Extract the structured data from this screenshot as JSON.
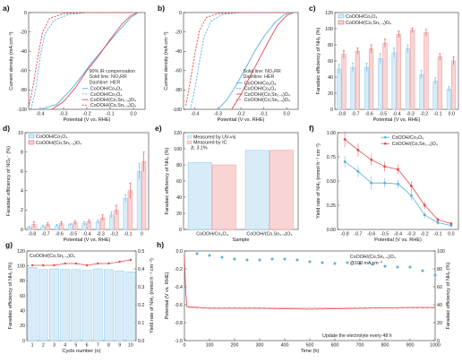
{
  "colors": {
    "blue": "#5aaee0",
    "red": "#e0494c",
    "lightblue": "#d8ecf8",
    "lightred": "#f9d4d4",
    "edgeblue": "#8cc8ec",
    "edgered": "#f09090"
  },
  "chart_data": [
    {
      "panel": "a",
      "type": "line",
      "xlabel": "Potential (V vs. RHE)",
      "ylabel": "Current density (mA cm⁻²)",
      "xlim": [
        -0.45,
        0.05
      ],
      "ylim": [
        -100,
        0
      ],
      "xticks": [
        "-0.4",
        "-0.3",
        "-0.2",
        "-0.1",
        "0.0"
      ],
      "yticks": [
        "-100",
        "-80",
        "-60",
        "-40",
        "-20",
        "0"
      ],
      "annotations": [
        "90% iR compensation",
        "Solid line: NO₃RR",
        "Dashline: HER"
      ],
      "series": [
        {
          "name": "CoOOH/Co₃O₄",
          "color": "#5aaee0",
          "dash": false,
          "points": [
            [
              -0.4,
              -100
            ],
            [
              -0.33,
              -95
            ],
            [
              -0.27,
              -80
            ],
            [
              -0.22,
              -65
            ],
            [
              -0.18,
              -52
            ],
            [
              -0.12,
              -35
            ],
            [
              -0.06,
              -18
            ],
            [
              -0.01,
              -5
            ],
            [
              0.02,
              0
            ]
          ]
        },
        {
          "name": "CoOOH/Co₃O₄",
          "color": "#5aaee0",
          "dash": true,
          "points": [
            [
              -0.44,
              -100
            ],
            [
              -0.42,
              -80
            ],
            [
              -0.4,
              -45
            ],
            [
              -0.38,
              -22
            ],
            [
              -0.34,
              -8
            ],
            [
              -0.28,
              -2
            ],
            [
              -0.2,
              0
            ],
            [
              0.0,
              0
            ]
          ]
        },
        {
          "name": "CoOOH/(Co,Sn₁₋ₓ)O₄",
          "color": "#e0494c",
          "dash": false,
          "points": [
            [
              -0.35,
              -100
            ],
            [
              -0.3,
              -92
            ],
            [
              -0.25,
              -78
            ],
            [
              -0.2,
              -60
            ],
            [
              -0.15,
              -45
            ],
            [
              -0.1,
              -28
            ],
            [
              -0.05,
              -12
            ],
            [
              -0.01,
              -3
            ],
            [
              0.02,
              0
            ]
          ]
        },
        {
          "name": "CoOOH/(Co,Sn₁₋ₓ)O₄",
          "color": "#e0494c",
          "dash": true,
          "points": [
            [
              -0.45,
              -98
            ],
            [
              -0.43,
              -75
            ],
            [
              -0.41,
              -45
            ],
            [
              -0.39,
              -20
            ],
            [
              -0.36,
              -6
            ],
            [
              -0.3,
              -1
            ],
            [
              -0.2,
              0
            ],
            [
              0.0,
              0
            ]
          ]
        }
      ],
      "legend": [
        "CoOOH/Co₃O₄",
        "CoOOH/Co₃O₄",
        "CoOOH/(Co,Sn₁₋ₓ)O₄",
        "CoOOH/(Co,Sn₁₋ₓ)O₄"
      ]
    },
    {
      "panel": "b",
      "type": "line",
      "xlabel": "Potential (V vs. RHE)",
      "ylabel": "Current density (mA cm⁻²)",
      "xlim": [
        -0.45,
        0.05
      ],
      "ylim": [
        -100,
        0
      ],
      "xticks": [
        "-0.4",
        "-0.3",
        "-0.2",
        "-0.1",
        "0.0"
      ],
      "yticks": [
        "-100",
        "-80",
        "-60",
        "-40",
        "-20",
        "0"
      ],
      "annotations": [
        "Solid line: NO₃RR",
        "Dashline: HER"
      ],
      "series": [
        {
          "name": "CoOOH/Co₃O₄",
          "color": "#5aaee0",
          "dash": false,
          "points": [
            [
              -0.3,
              -100
            ],
            [
              -0.26,
              -90
            ],
            [
              -0.22,
              -75
            ],
            [
              -0.18,
              -58
            ],
            [
              -0.14,
              -40
            ],
            [
              -0.1,
              -25
            ],
            [
              -0.05,
              -10
            ],
            [
              -0.01,
              -2
            ],
            [
              0.02,
              0
            ]
          ]
        },
        {
          "name": "CoOOH/Co₃O₄",
          "color": "#5aaee0",
          "dash": true,
          "points": [
            [
              -0.42,
              -100
            ],
            [
              -0.4,
              -78
            ],
            [
              -0.38,
              -50
            ],
            [
              -0.36,
              -25
            ],
            [
              -0.33,
              -9
            ],
            [
              -0.28,
              -2
            ],
            [
              -0.2,
              0
            ],
            [
              0.0,
              0
            ]
          ]
        },
        {
          "name": "CoOOH/(Co,Sn₁₋ₓ)O₄",
          "color": "#e0494c",
          "dash": false,
          "points": [
            [
              -0.24,
              -100
            ],
            [
              -0.2,
              -85
            ],
            [
              -0.16,
              -66
            ],
            [
              -0.12,
              -48
            ],
            [
              -0.08,
              -30
            ],
            [
              -0.04,
              -13
            ],
            [
              0.0,
              -3
            ],
            [
              0.03,
              0
            ]
          ]
        },
        {
          "name": "CoOOH/(Co,Sn₁₋ₓ)O₄",
          "color": "#e0494c",
          "dash": true,
          "points": [
            [
              -0.44,
              -96
            ],
            [
              -0.42,
              -70
            ],
            [
              -0.4,
              -42
            ],
            [
              -0.38,
              -18
            ],
            [
              -0.35,
              -5
            ],
            [
              -0.3,
              -1
            ],
            [
              -0.2,
              0
            ],
            [
              0.0,
              0
            ]
          ]
        }
      ],
      "legend": [
        "CoOOH/Co₃O₄",
        "CoOOH/Co₃O₄",
        "CoOOH/(Co,Sn₁₋ₓ)O₄",
        "CoOOH/(Co,Sn₁₋ₓ)O₄"
      ]
    },
    {
      "panel": "c",
      "type": "bar",
      "xlabel": "Potential (V vs. RHE)",
      "ylabel": "Faradaic efficiency of NH₃ (%)",
      "ylim": [
        0,
        120
      ],
      "yticks": [
        "0",
        "20",
        "40",
        "60",
        "80",
        "100",
        "120"
      ],
      "categories": [
        "-0.8",
        "-0.7",
        "-0.6",
        "-0.5",
        "-0.4",
        "-0.3",
        "-0.2",
        "-0.1",
        "0.0"
      ],
      "series": [
        {
          "name": "CoOOH/Co₃O₄",
          "color": "#5aaee0",
          "values": [
            50,
            52,
            52,
            63,
            70,
            75,
            43,
            35,
            25
          ],
          "errors": [
            6,
            5,
            5,
            6,
            6,
            5,
            5,
            4,
            3
          ]
        },
        {
          "name": "CoOOH/(Co,Sn₁₋ₓ)O₄",
          "color": "#e0494c",
          "values": [
            68,
            72,
            75,
            82,
            93,
            98,
            95,
            65,
            60
          ],
          "errors": [
            5,
            4,
            5,
            5,
            4,
            3,
            4,
            4,
            5
          ]
        }
      ]
    },
    {
      "panel": "d",
      "type": "bar",
      "xlabel": "Potential (V vs. RHE)",
      "ylabel": "Faradaic efficiency of NO₂⁻ (%)",
      "ylim": [
        0,
        10
      ],
      "yticks": [
        "0",
        "2",
        "4",
        "6",
        "8",
        "10"
      ],
      "categories": [
        "-0.8",
        "-0.7",
        "-0.6",
        "-0.5",
        "-0.4",
        "-0.3",
        "-0.2",
        "-0.1",
        "0"
      ],
      "series": [
        {
          "name": "CoOOH/Co₃O₄",
          "color": "#5aaee0",
          "values": [
            0.2,
            0.3,
            0.4,
            0.5,
            0.6,
            0.8,
            1.5,
            3.2,
            6.0
          ],
          "errors": [
            0.1,
            0.1,
            0.1,
            0.1,
            0.2,
            0.2,
            0.3,
            0.4,
            0.8
          ]
        },
        {
          "name": "CoOOH/(Co,Sn₁₋ₓ)O₄",
          "color": "#e0494c",
          "values": [
            0.5,
            0.5,
            0.6,
            0.7,
            0.8,
            1.2,
            2.0,
            4.0,
            7.0
          ],
          "errors": [
            0.3,
            0.2,
            0.2,
            0.2,
            0.2,
            0.3,
            0.5,
            0.8,
            1.0
          ]
        }
      ]
    },
    {
      "panel": "e",
      "type": "bar",
      "xlabel": "Sample",
      "ylabel": "Faradaic efficiency of NH₃ (%)",
      "ylim": [
        0,
        120
      ],
      "yticks": [
        "0",
        "20",
        "40",
        "60",
        "80",
        "100",
        "120"
      ],
      "categories": [
        "CoOOH/Co₃O₄",
        "CoOOH/(Co,Sn₁₋ₓ)O₄"
      ],
      "annotations": [
        "Measured by UV-vis",
        "Measured by IC",
        "Δ: 3.1%"
      ],
      "series": [
        {
          "name": "Measured by UV-vis",
          "color": "#d8ecf8",
          "values": [
            83,
            98
          ]
        },
        {
          "name": "Measured by IC",
          "color": "#f9d4d4",
          "values": [
            80,
            98
          ]
        }
      ]
    },
    {
      "panel": "f",
      "type": "line",
      "xlabel": "Potential (V vs. RHE)",
      "ylabel": "Yield rate of NH₃ (mmol h⁻¹ cm⁻²)",
      "ylim": [
        0,
        1.0
      ],
      "yticks": [
        "0.00",
        "0.25",
        "0.50",
        "0.75",
        "1.00"
      ],
      "categories": [
        "-0.8",
        "-0.7",
        "-0.6",
        "-0.5",
        "-0.4",
        "-0.3",
        "-0.2",
        "-0.1",
        "0.0"
      ],
      "series": [
        {
          "name": "CoOOH/Co₃O₄",
          "color": "#5aaee0",
          "values": [
            0.7,
            0.6,
            0.48,
            0.48,
            0.47,
            0.35,
            0.15,
            0.07,
            0.04
          ],
          "errors": [
            0.06,
            0.06,
            0.07,
            0.05,
            0.05,
            0.05,
            0.03,
            0.02,
            0.01
          ]
        },
        {
          "name": "CoOOH/(Co,Sn₁₋ₓ)O₄",
          "color": "#e0494c",
          "values": [
            0.93,
            0.82,
            0.72,
            0.65,
            0.62,
            0.45,
            0.25,
            0.1,
            0.06
          ],
          "errors": [
            0.08,
            0.07,
            0.06,
            0.05,
            0.05,
            0.05,
            0.04,
            0.02,
            0.01
          ]
        }
      ]
    },
    {
      "panel": "g",
      "type": "bar",
      "title": "CoOOH/(Co,Sn₁₋ₓ)O₄",
      "xlabel": "Cycle number (n)",
      "ylabel": "Faradaic efficiency of NH₃ (%)",
      "ylabel2": "Yield rate of NH₃ (mmol h⁻¹ cm⁻²)",
      "ylim": [
        0,
        120
      ],
      "yticks": [
        "0",
        "20",
        "40",
        "60",
        "80",
        "100",
        "120"
      ],
      "ylim2": [
        0,
        0.5
      ],
      "yticks2": [
        "0.0",
        "0.1",
        "0.2",
        "0.3",
        "0.4",
        "0.5"
      ],
      "categories": [
        "1",
        "2",
        "3",
        "4",
        "5",
        "6",
        "7",
        "8",
        "9",
        "10"
      ],
      "bar_values": [
        98,
        95,
        96,
        95,
        95,
        94,
        96,
        95,
        93,
        92
      ],
      "line_values": [
        0.42,
        0.42,
        0.42,
        0.43,
        0.43,
        0.42,
        0.43,
        0.43,
        0.44,
        0.45
      ]
    },
    {
      "panel": "h",
      "type": "line",
      "xlabel": "Time (h)",
      "ylabel": "Potential (V vs. RHE)",
      "ylabel2": "Faradaic efficiency of NH₃ (%)",
      "xlim": [
        0,
        1000
      ],
      "xticks": [
        "0",
        "100",
        "200",
        "300",
        "400",
        "500",
        "600",
        "700",
        "800",
        "900",
        "1000"
      ],
      "ylim": [
        -1.0,
        0.0
      ],
      "yticks": [
        "-1.0",
        "-0.8",
        "-0.6",
        "-0.4",
        "-0.2",
        "0.0"
      ],
      "ylim2": [
        0,
        100
      ],
      "yticks2": [
        "0",
        "20",
        "40",
        "60",
        "80",
        "100"
      ],
      "annotations": [
        "CoOOH/(Co,Sn₁₋ₓ)O₄",
        "@100 mA cm⁻²",
        "Update the electrolyte every 48 h"
      ],
      "potential": [
        [
          0,
          -0.05
        ],
        [
          5,
          -0.45
        ],
        [
          10,
          -0.62
        ],
        [
          100,
          -0.64
        ],
        [
          300,
          -0.64
        ],
        [
          500,
          -0.65
        ],
        [
          700,
          -0.64
        ],
        [
          900,
          -0.63
        ],
        [
          1000,
          -0.63
        ]
      ],
      "fe_points": [
        [
          50,
          97
        ],
        [
          100,
          95
        ],
        [
          150,
          93
        ],
        [
          200,
          91
        ],
        [
          250,
          90
        ],
        [
          300,
          90
        ],
        [
          350,
          91
        ],
        [
          400,
          91
        ],
        [
          450,
          90
        ],
        [
          500,
          88
        ],
        [
          550,
          87
        ],
        [
          600,
          86
        ],
        [
          650,
          87
        ],
        [
          700,
          86
        ],
        [
          750,
          85
        ],
        [
          800,
          83
        ],
        [
          850,
          82
        ],
        [
          900,
          82
        ],
        [
          950,
          78
        ],
        [
          1000,
          73
        ]
      ]
    }
  ]
}
